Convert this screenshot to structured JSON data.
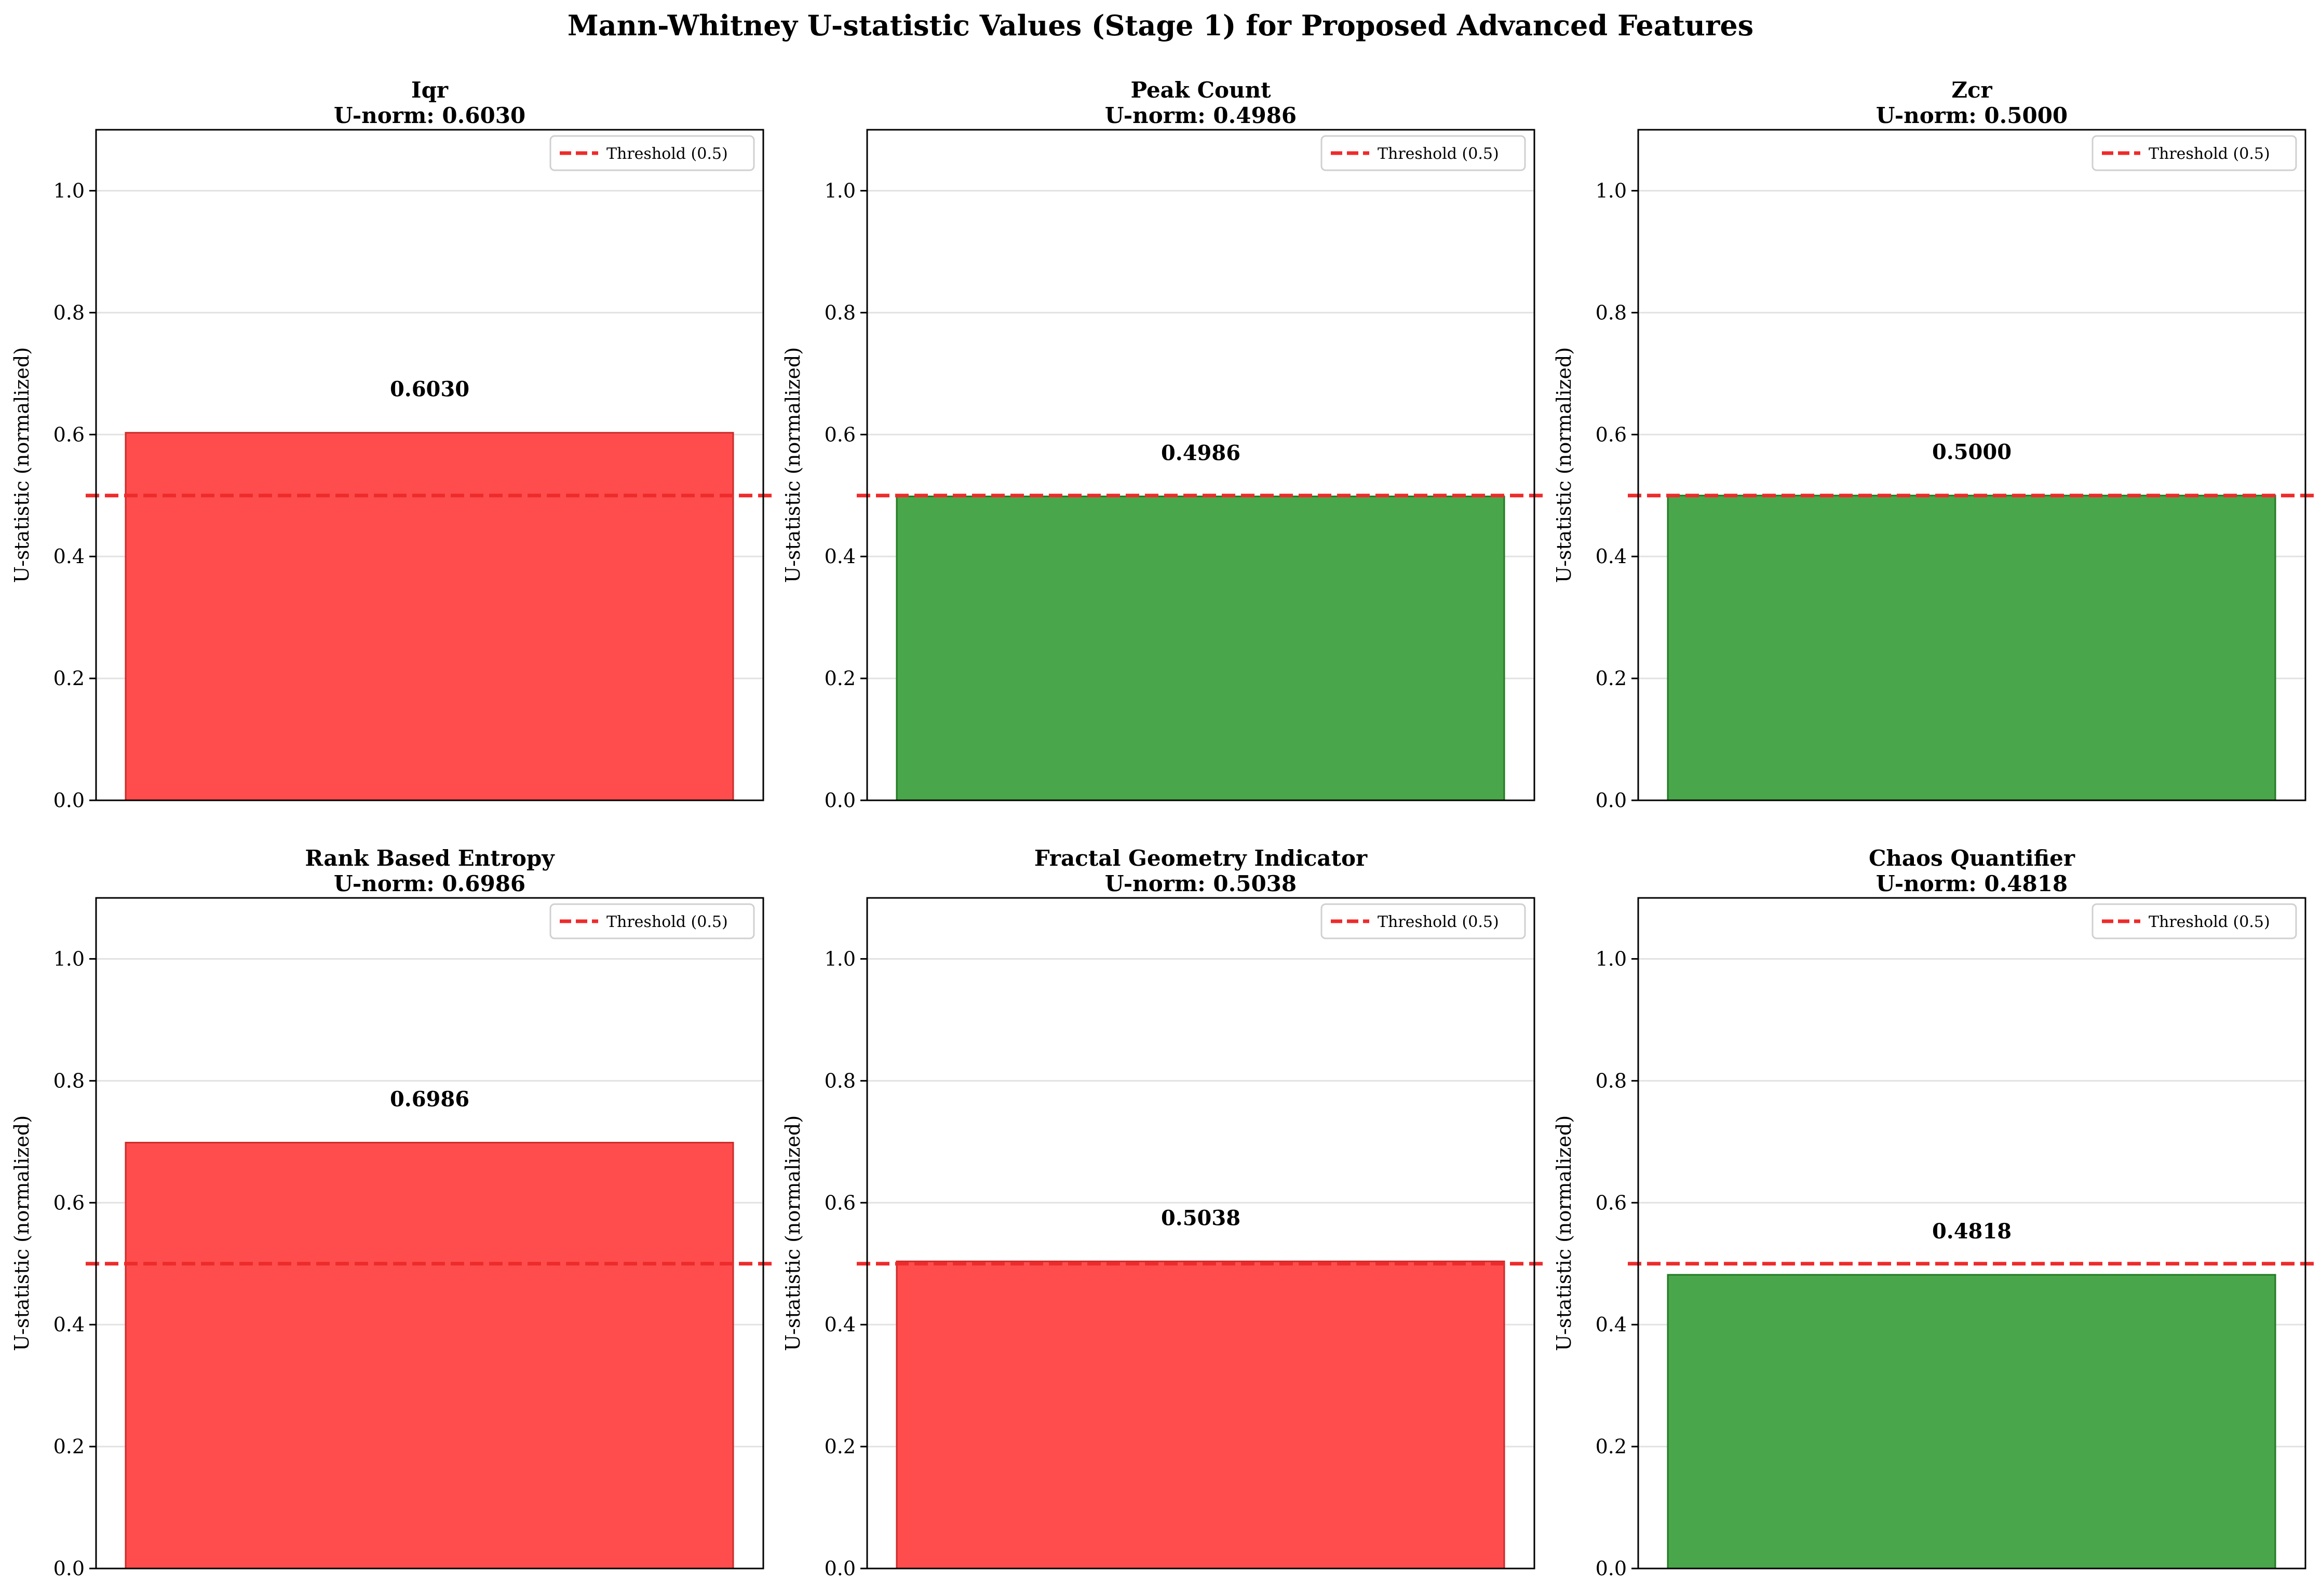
{
  "figure": {
    "suptitle": "Mann-Whitney U-statistic Values (Stage 1) for Proposed Advanced Features"
  },
  "colors": {
    "above_threshold_bar": "#ff4d4d",
    "above_threshold_edge": "#cc2a2a",
    "below_threshold_bar": "#4aa64a",
    "below_threshold_edge": "#237a23",
    "threshold_line": "#ee2b2b",
    "grid": "#e2e2e2",
    "axis": "#000000",
    "legend_border": "#d0d0d0"
  },
  "chart_data": [
    {
      "type": "bar",
      "title": "Iqr",
      "subtitle": "U-norm: 0.6030",
      "ylabel": "U-statistic (normalized)",
      "ylim": [
        0,
        1.1
      ],
      "yticks": [
        "0.0",
        "0.2",
        "0.4",
        "0.6",
        "0.8",
        "1.0"
      ],
      "values": [
        0.603
      ],
      "data_label": "0.6030",
      "bar_color": "red",
      "threshold": 0.5,
      "legend": "Threshold (0.5)",
      "legend_position": "top-right",
      "grid": "y"
    },
    {
      "type": "bar",
      "title": "Peak Count",
      "subtitle": "U-norm: 0.4986",
      "ylabel": "U-statistic (normalized)",
      "ylim": [
        0,
        1.1
      ],
      "yticks": [
        "0.0",
        "0.2",
        "0.4",
        "0.6",
        "0.8",
        "1.0"
      ],
      "values": [
        0.4986
      ],
      "data_label": "0.4986",
      "bar_color": "green",
      "threshold": 0.5,
      "legend": "Threshold (0.5)",
      "legend_position": "top-right",
      "grid": "y"
    },
    {
      "type": "bar",
      "title": "Zcr",
      "subtitle": "U-norm: 0.5000",
      "ylabel": "U-statistic (normalized)",
      "ylim": [
        0,
        1.1
      ],
      "yticks": [
        "0.0",
        "0.2",
        "0.4",
        "0.6",
        "0.8",
        "1.0"
      ],
      "values": [
        0.5
      ],
      "data_label": "0.5000",
      "bar_color": "green",
      "threshold": 0.5,
      "legend": "Threshold (0.5)",
      "legend_position": "top-right",
      "grid": "y"
    },
    {
      "type": "bar",
      "title": "Rank Based Entropy",
      "subtitle": "U-norm: 0.6986",
      "ylabel": "U-statistic (normalized)",
      "ylim": [
        0,
        1.1
      ],
      "yticks": [
        "0.0",
        "0.2",
        "0.4",
        "0.6",
        "0.8",
        "1.0"
      ],
      "values": [
        0.6986
      ],
      "data_label": "0.6986",
      "bar_color": "red",
      "threshold": 0.5,
      "legend": "Threshold (0.5)",
      "legend_position": "top-right",
      "grid": "y"
    },
    {
      "type": "bar",
      "title": "Fractal Geometry Indicator",
      "subtitle": "U-norm: 0.5038",
      "ylabel": "U-statistic (normalized)",
      "ylim": [
        0,
        1.1
      ],
      "yticks": [
        "0.0",
        "0.2",
        "0.4",
        "0.6",
        "0.8",
        "1.0"
      ],
      "values": [
        0.5038
      ],
      "data_label": "0.5038",
      "bar_color": "red",
      "threshold": 0.5,
      "legend": "Threshold (0.5)",
      "legend_position": "top-right",
      "grid": "y"
    },
    {
      "type": "bar",
      "title": "Chaos Quantifier",
      "subtitle": "U-norm: 0.4818",
      "ylabel": "U-statistic (normalized)",
      "ylim": [
        0,
        1.1
      ],
      "yticks": [
        "0.0",
        "0.2",
        "0.4",
        "0.6",
        "0.8",
        "1.0"
      ],
      "values": [
        0.4818
      ],
      "data_label": "0.4818",
      "bar_color": "green",
      "threshold": 0.5,
      "legend": "Threshold (0.5)",
      "legend_position": "top-right",
      "grid": "y"
    }
  ]
}
